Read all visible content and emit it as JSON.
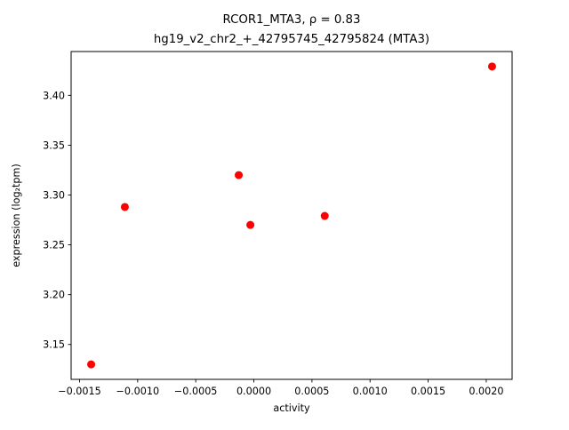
{
  "title": {
    "line1": "RCOR1_MTA3, ρ = 0.83",
    "line2": "hg19_v2_chr2_+_42795745_42795824 (MTA3)"
  },
  "chart_data": {
    "type": "scatter",
    "title": "RCOR1_MTA3, ρ = 0.83\nhg19_v2_chr2_+_42795745_42795824 (MTA3)",
    "xlabel": "activity",
    "ylabel": "expression (log₂tpm)",
    "xlim": [
      -0.0015725,
      0.0022225
    ],
    "ylim": [
      3.115,
      3.444
    ],
    "grid": false,
    "legend": null,
    "marker_color": "#ff0000",
    "marker_style": "circle",
    "x_ticks": [
      -0.0015,
      -0.001,
      -0.0005,
      0.0,
      0.0005,
      0.001,
      0.0015,
      0.002
    ],
    "x_tick_labels": [
      "−0.0015",
      "−0.0010",
      "−0.0005",
      "0.0000",
      "0.0005",
      "0.0010",
      "0.0015",
      "0.0020"
    ],
    "y_ticks": [
      3.15,
      3.2,
      3.25,
      3.3,
      3.35,
      3.4
    ],
    "y_tick_labels": [
      "3.15",
      "3.20",
      "3.25",
      "3.30",
      "3.35",
      "3.40"
    ],
    "points": {
      "x": [
        -0.0014,
        -0.00111,
        -0.00013,
        -3e-05,
        0.00061,
        0.00205
      ],
      "y": [
        3.13,
        3.288,
        3.32,
        3.27,
        3.279,
        3.429
      ]
    },
    "correlation_rho": 0.83
  }
}
